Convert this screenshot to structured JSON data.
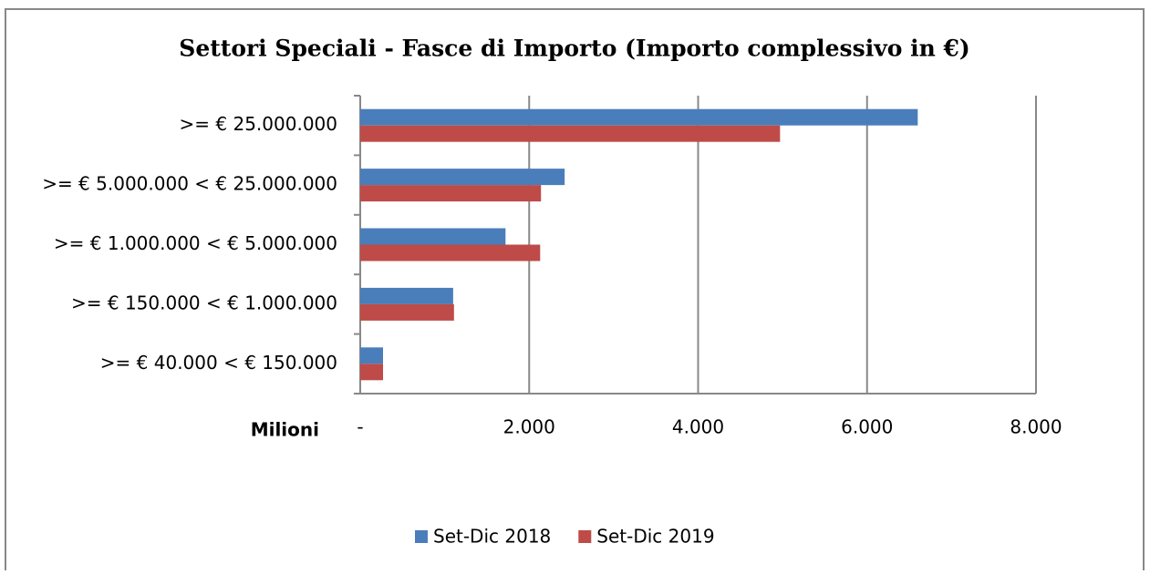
{
  "chart_data": {
    "type": "hbar",
    "title": "Settori Speciali - Fasce di Importo (Importo complessivo in €)",
    "x_label": "Milioni",
    "categories": [
      ">= € 25.000.000",
      ">= € 5.000.000 < € 25.000.000",
      ">= € 1.000.000 < € 5.000.000",
      ">= € 150.000 < € 1.000.000",
      ">= € 40.000 < € 150.000"
    ],
    "series": [
      {
        "name": "Set-Dic 2018",
        "color": "#4a7ebb",
        "values": [
          6600,
          2420,
          1720,
          1100,
          270
        ]
      },
      {
        "name": "Set-Dic 2019",
        "color": "#be4b48",
        "values": [
          4970,
          2140,
          2130,
          1110,
          270
        ]
      }
    ],
    "xlim": [
      0,
      8000
    ],
    "xticks": [
      {
        "value": 0,
        "label": "-"
      },
      {
        "value": 2000,
        "label": "2.000"
      },
      {
        "value": 4000,
        "label": "4.000"
      },
      {
        "value": 6000,
        "label": "6.000"
      },
      {
        "value": 8000,
        "label": "8.000"
      }
    ],
    "grid": true,
    "legend": "bottom"
  }
}
